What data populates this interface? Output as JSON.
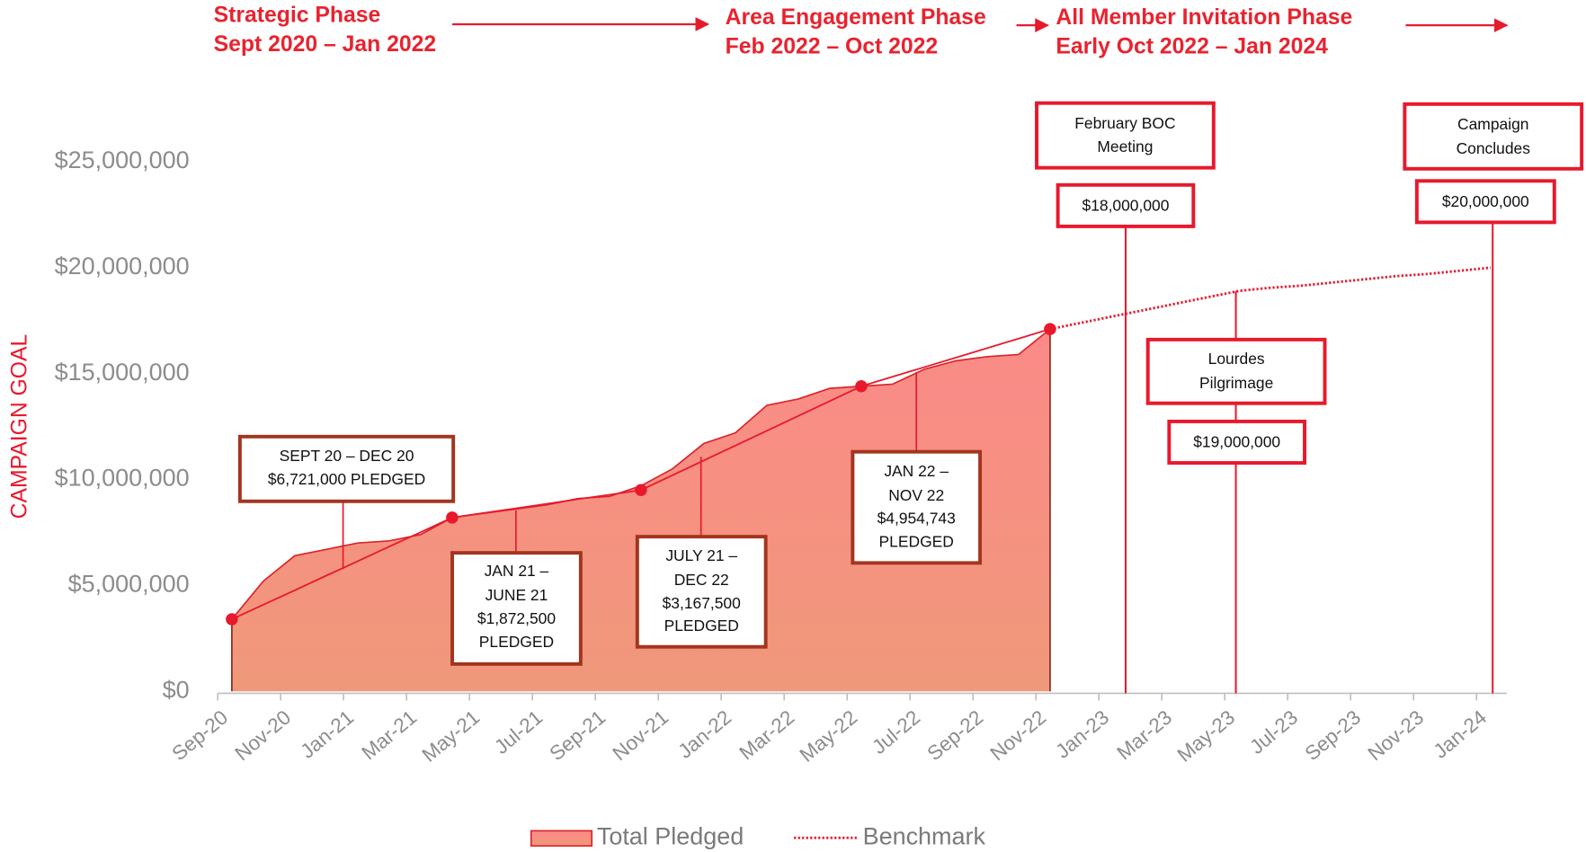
{
  "chart_data": {
    "type": "area",
    "y_label": "CAMPAIGN GOAL",
    "categories": [
      "Sep-20",
      null,
      "Nov-20",
      null,
      "Jan-21",
      null,
      "Mar-21",
      null,
      "May-21",
      null,
      "Jul-21",
      null,
      "Sep-21",
      null,
      "Nov-21",
      null,
      "Jan-22",
      null,
      "Mar-22",
      null,
      "May-22",
      null,
      "Jul-22",
      null,
      "Sep-22",
      null,
      "Nov-22",
      null,
      "Jan-23",
      null,
      "Mar-23",
      null,
      "May-23",
      null,
      "Jul-23",
      null,
      "Sep-23",
      null,
      "Nov-23",
      null,
      "Jan-24"
    ],
    "series": [
      {
        "name": "Total Pledged",
        "style": "area",
        "color": "#f58c84",
        "values": [
          3400000,
          5200000,
          6400000,
          6700000,
          7000000,
          7100000,
          7400000,
          8200000,
          8400000,
          8600000,
          8800000,
          9100000,
          9200000,
          9700000,
          10500000,
          11700000,
          12200000,
          13500000,
          13800000,
          14300000,
          14400000,
          14500000,
          15200000,
          15600000,
          15800000,
          15900000,
          17100000,
          null,
          null,
          null,
          null,
          null,
          null,
          null,
          null,
          null,
          null,
          null,
          null,
          null,
          null
        ]
      },
      {
        "name": "Benchmark",
        "style": "dotted",
        "color": "#e8192c",
        "values": [
          null,
          null,
          null,
          null,
          null,
          null,
          null,
          null,
          null,
          null,
          null,
          null,
          null,
          null,
          null,
          null,
          null,
          null,
          null,
          null,
          null,
          null,
          null,
          null,
          null,
          null,
          17100000,
          17400000,
          17700000,
          18000000,
          18300000,
          18600000,
          18900000,
          19050000,
          19150000,
          19300000,
          19450000,
          19600000,
          19700000,
          19850000,
          20000000
        ]
      },
      {
        "style": "solid",
        "color": "#e8192c",
        "values": [
          3400000,
          4090000,
          4770000,
          5460000,
          6140000,
          6830000,
          7510000,
          8200000,
          8420000,
          8630000,
          8850000,
          9070000,
          9280000,
          9500000,
          10200000,
          10900000,
          11600000,
          12300000,
          13000000,
          13700000,
          14400000,
          14850000,
          15300000,
          15750000,
          16200000,
          16650000,
          17100000,
          null,
          null,
          null,
          null,
          null,
          null,
          null,
          null,
          null,
          null,
          null,
          null,
          null,
          null
        ]
      },
      {
        "style": "markers",
        "color": "#e8192c",
        "values": [
          3400000,
          null,
          null,
          null,
          null,
          null,
          null,
          8200000,
          null,
          null,
          null,
          null,
          null,
          9500000,
          null,
          null,
          null,
          null,
          null,
          null,
          14400000,
          null,
          null,
          null,
          null,
          null,
          17100000,
          null,
          null,
          null,
          null,
          null,
          null,
          null,
          null,
          null,
          null,
          null,
          null,
          null,
          null
        ]
      }
    ],
    "ylim": [
      0,
      25000000
    ],
    "yticks": [
      {
        "value": 0,
        "label": "$0"
      },
      {
        "value": 5000000,
        "label": "$5,000,000"
      },
      {
        "value": 10000000,
        "label": "$10,000,000"
      },
      {
        "value": 15000000,
        "label": "$15,000,000"
      },
      {
        "value": 20000000,
        "label": "$20,000,000"
      },
      {
        "value": 25000000,
        "label": "$25,000,000"
      }
    ],
    "phases": [
      {
        "name": "Strategic Phase",
        "dates": "Sept 2020 – Jan 2022"
      },
      {
        "name": "Area Engagement Phase",
        "dates": "Feb 2022 – Oct 2022"
      },
      {
        "name": "All Member Invitation Phase",
        "dates": "Early Oct 2022 – Jan 2024"
      }
    ],
    "callouts": [
      {
        "lines": [
          "SEPT 20 – DEC 20",
          "$6,721,000 PLEDGED"
        ]
      },
      {
        "lines": [
          "JAN 21 –",
          "JUNE 21",
          "$1,872,500",
          "PLEDGED"
        ]
      },
      {
        "lines": [
          "JULY 21 –",
          "DEC 22",
          "$3,167,500",
          "PLEDGED"
        ]
      },
      {
        "lines": [
          "JAN 22 –",
          "NOV 22",
          "$4,954,743",
          "PLEDGED"
        ]
      }
    ],
    "milestones": [
      {
        "lines": [
          "February BOC",
          "Meeting"
        ],
        "amount": "$18,000,000"
      },
      {
        "lines": [
          "Lourdes",
          "Pilgrimage"
        ],
        "amount": "$19,000,000"
      },
      {
        "lines": [
          "Campaign",
          "Concludes"
        ],
        "amount": "$20,000,000"
      }
    ]
  }
}
